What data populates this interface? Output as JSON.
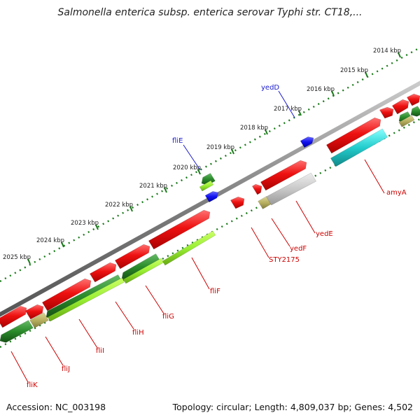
{
  "title": "Salmonella enterica subsp. enterica serovar Typhi str. CT18,...",
  "footer": {
    "accession": "Accession: NC_003198",
    "summary": "Topology: circular; Length: 4,809,037 bp; Genes: 4,502"
  },
  "ruler_labels": [
    "2014 kbp",
    "2015 kbp",
    "2016 kbp",
    "2017 kbp",
    "2018 kbp",
    "2019 kbp",
    "2020 kbp",
    "2021 kbp",
    "2022 kbp",
    "2023 kbp",
    "2024 kbp",
    "2025 kbp"
  ],
  "gene_labels": [
    {
      "name": "yedD",
      "color": "#1a1acc"
    },
    {
      "name": "fliE",
      "color": "#1a1acc"
    },
    {
      "name": "amyA",
      "color": "#cc0000"
    },
    {
      "name": "yedE",
      "color": "#cc0000"
    },
    {
      "name": "yedF",
      "color": "#cc0000"
    },
    {
      "name": "STY2175",
      "color": "#cc0000"
    },
    {
      "name": "fliF",
      "color": "#cc0000"
    },
    {
      "name": "fliG",
      "color": "#cc0000"
    },
    {
      "name": "fliH",
      "color": "#cc0000"
    },
    {
      "name": "fliI",
      "color": "#cc0000"
    },
    {
      "name": "fliJ",
      "color": "#cc0000"
    },
    {
      "name": "fliK",
      "color": "#cc0000"
    }
  ],
  "colors": {
    "backbone": "#808080",
    "forward_gene": "#ee1111",
    "reverse_green": "#2a8a2a",
    "reverse_lime": "#99ee33",
    "cyan_gene": "#22cccc",
    "gray_gene": "#c8c8c8",
    "olive_gene": "#b8b060",
    "blue_marker": "#1111ee",
    "ruler_tick": "#1a7a1a"
  }
}
